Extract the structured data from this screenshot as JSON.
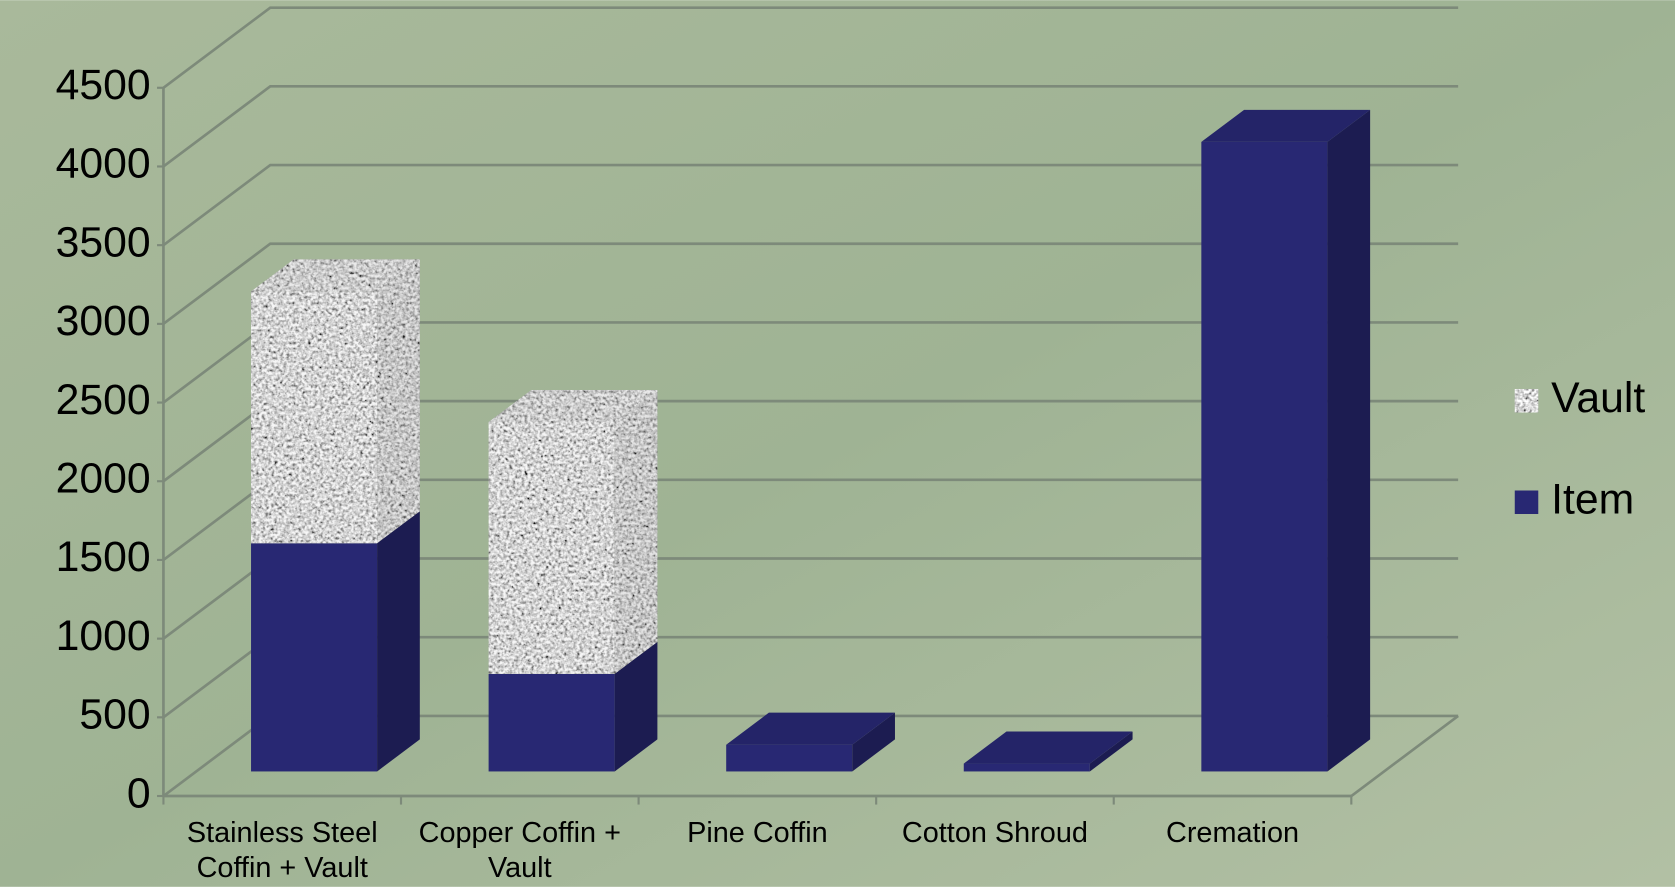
{
  "chart_data": {
    "type": "bar3d_stacked",
    "categories": [
      "Stainless Steel Coffin + Vault",
      "Copper Coffin + Vault",
      "Pine Coffin",
      "Cotton Shroud",
      "Cremation"
    ],
    "series": [
      {
        "name": "Item",
        "color": "#282873",
        "values": [
          1450,
          620,
          170,
          50,
          4000
        ]
      },
      {
        "name": "Vault",
        "color": "#a9a9a9",
        "values": [
          1600,
          1600,
          null,
          null,
          null
        ]
      }
    ],
    "ylim": [
      0,
      4500
    ],
    "yticks": [
      0,
      500,
      1000,
      1500,
      2000,
      2500,
      3000,
      3500,
      4000,
      4500
    ],
    "grid": true,
    "legend": "right"
  }
}
